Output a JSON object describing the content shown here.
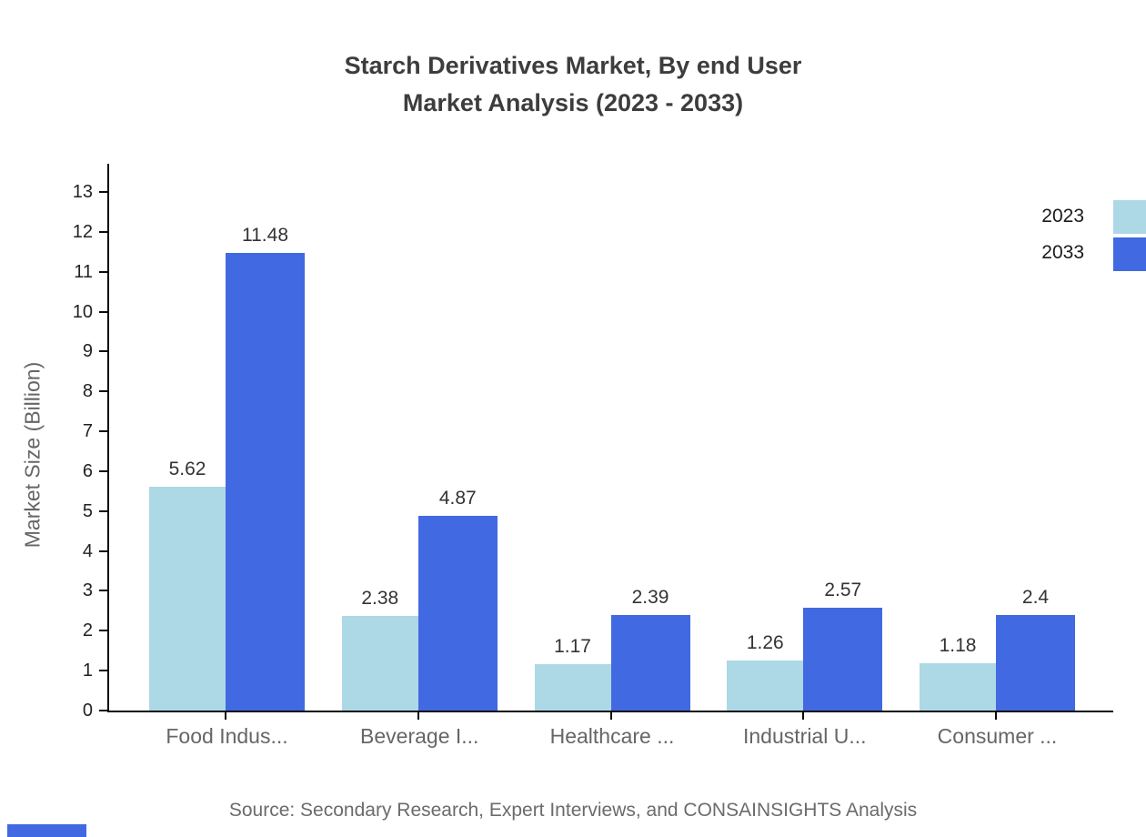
{
  "title": {
    "line1": "Starch Derivatives Market, By end User",
    "line2": "Market Analysis (2023 - 2033)"
  },
  "chart_data": {
    "type": "bar",
    "categories": [
      "Food Indus...",
      "Beverage I...",
      "Healthcare ...",
      "Industrial U...",
      "Consumer ..."
    ],
    "series": [
      {
        "name": "2023",
        "color": "#add8e6",
        "values": [
          5.62,
          2.38,
          1.17,
          1.26,
          1.18
        ],
        "labels": [
          "5.62",
          "2.38",
          "1.17",
          "1.26",
          "1.18"
        ]
      },
      {
        "name": "2033",
        "color": "#4169e1",
        "values": [
          11.48,
          4.87,
          2.39,
          2.57,
          2.4
        ],
        "labels": [
          "11.48",
          "4.87",
          "2.39",
          "2.57",
          "2.4"
        ]
      }
    ],
    "xlabel": "",
    "ylabel": "Market Size (Billion)",
    "ylim": [
      0,
      13
    ],
    "ytick_step": 1,
    "grid": false,
    "legend_position": "top-right"
  },
  "legend": {
    "items": [
      {
        "label": "2023",
        "color": "#add8e6"
      },
      {
        "label": "2033",
        "color": "#4169e1"
      }
    ]
  },
  "source": "Source: Secondary Research, Expert Interviews, and CONSAINSIGHTS Analysis",
  "colors": {
    "axis": "#0a0a0a",
    "tick_label": "#222222",
    "category_label": "#666666",
    "value_label": "#333333",
    "title": "#3d3d3d",
    "accent_bar": "#4169e1"
  }
}
